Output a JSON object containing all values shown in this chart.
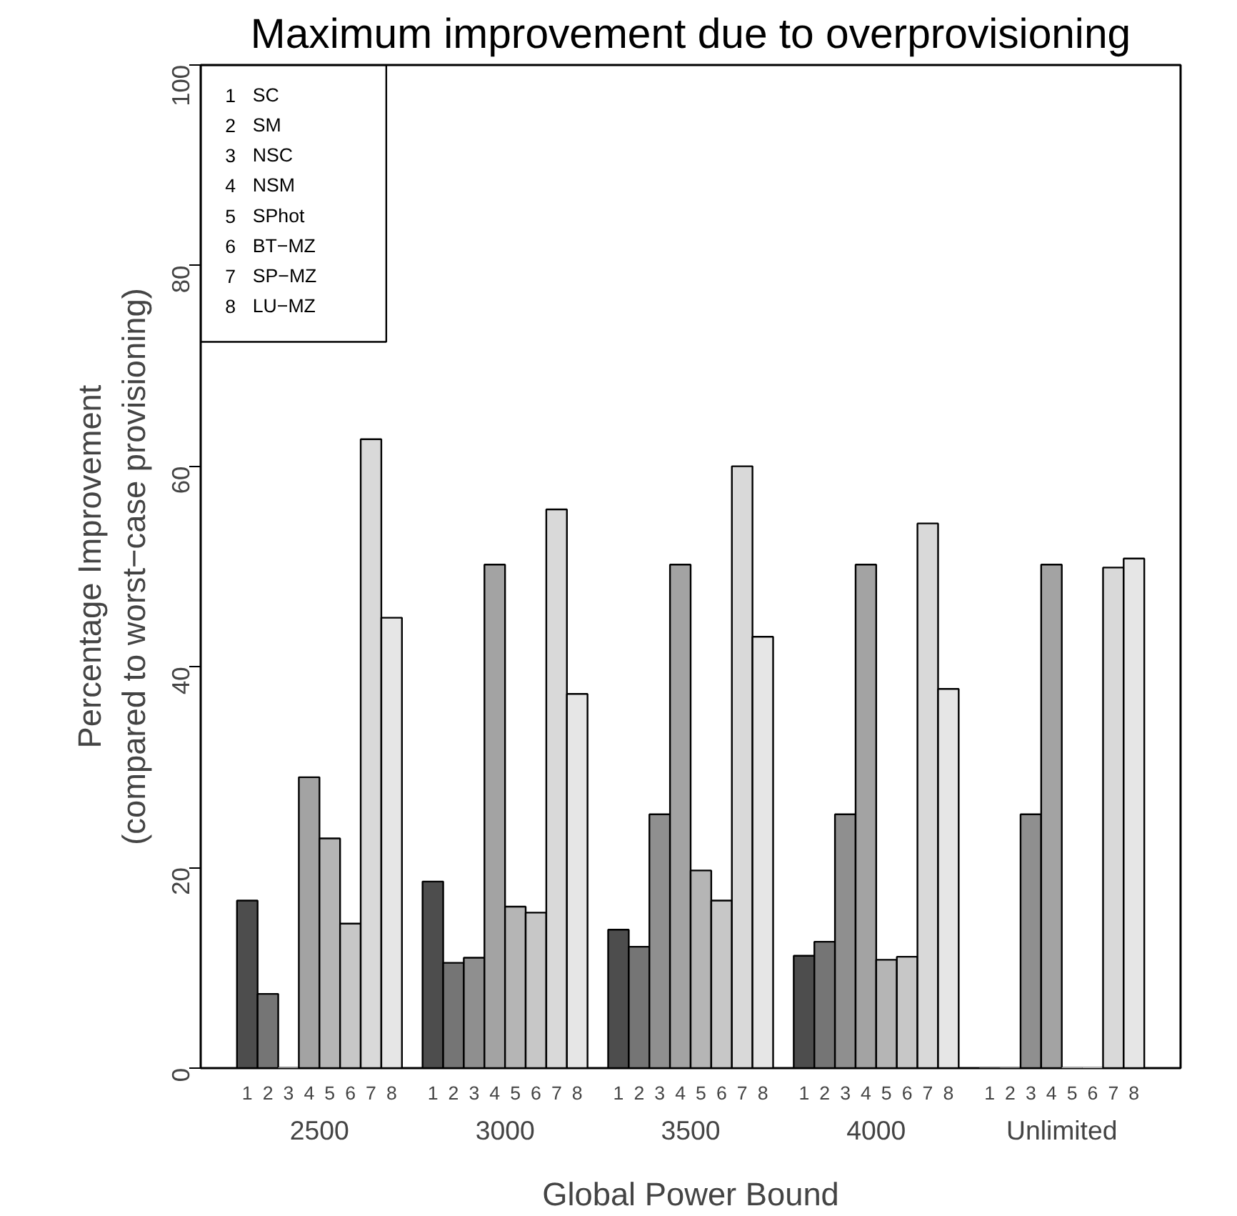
{
  "chart_data": {
    "type": "bar",
    "title": "Maximum improvement due to overprovisioning",
    "xlabel": "Global Power Bound",
    "ylabel": "Percentage Improvement\n(compared to worst−case provisioning)",
    "categories": [
      "2500",
      "3000",
      "3500",
      "4000",
      "Unlimited"
    ],
    "series": [
      {
        "name": "1",
        "color": "#4d4d4d",
        "values": [
          16.7,
          18.6,
          13.8,
          11.2,
          0
        ]
      },
      {
        "name": "2",
        "color": "#757575",
        "values": [
          7.4,
          10.5,
          12.1,
          12.6,
          0
        ]
      },
      {
        "name": "3",
        "color": "#8f8f8f",
        "values": [
          0,
          11.0,
          25.3,
          25.3,
          25.3
        ]
      },
      {
        "name": "4",
        "color": "#a3a3a3",
        "values": [
          29.0,
          50.2,
          50.2,
          50.2,
          50.2
        ]
      },
      {
        "name": "5",
        "color": "#b5b5b5",
        "values": [
          22.9,
          16.1,
          19.7,
          10.8,
          0
        ]
      },
      {
        "name": "6",
        "color": "#c7c7c7",
        "values": [
          14.4,
          15.5,
          16.7,
          11.1,
          0
        ]
      },
      {
        "name": "7",
        "color": "#d9d9d9",
        "values": [
          62.7,
          55.7,
          60.0,
          54.3,
          49.9
        ]
      },
      {
        "name": "8",
        "color": "#e6e6e6",
        "values": [
          44.9,
          37.3,
          43.0,
          37.8,
          50.8
        ]
      }
    ],
    "annotations": [
      "SC",
      "SM",
      "NSC",
      "NSM",
      "SPhot",
      "BT−MZ",
      "SP−MZ",
      "LU−MZ"
    ],
    "ylim": [
      0,
      100
    ],
    "yticks": [
      0,
      20,
      40,
      60,
      80,
      100
    ],
    "grid": false
  }
}
